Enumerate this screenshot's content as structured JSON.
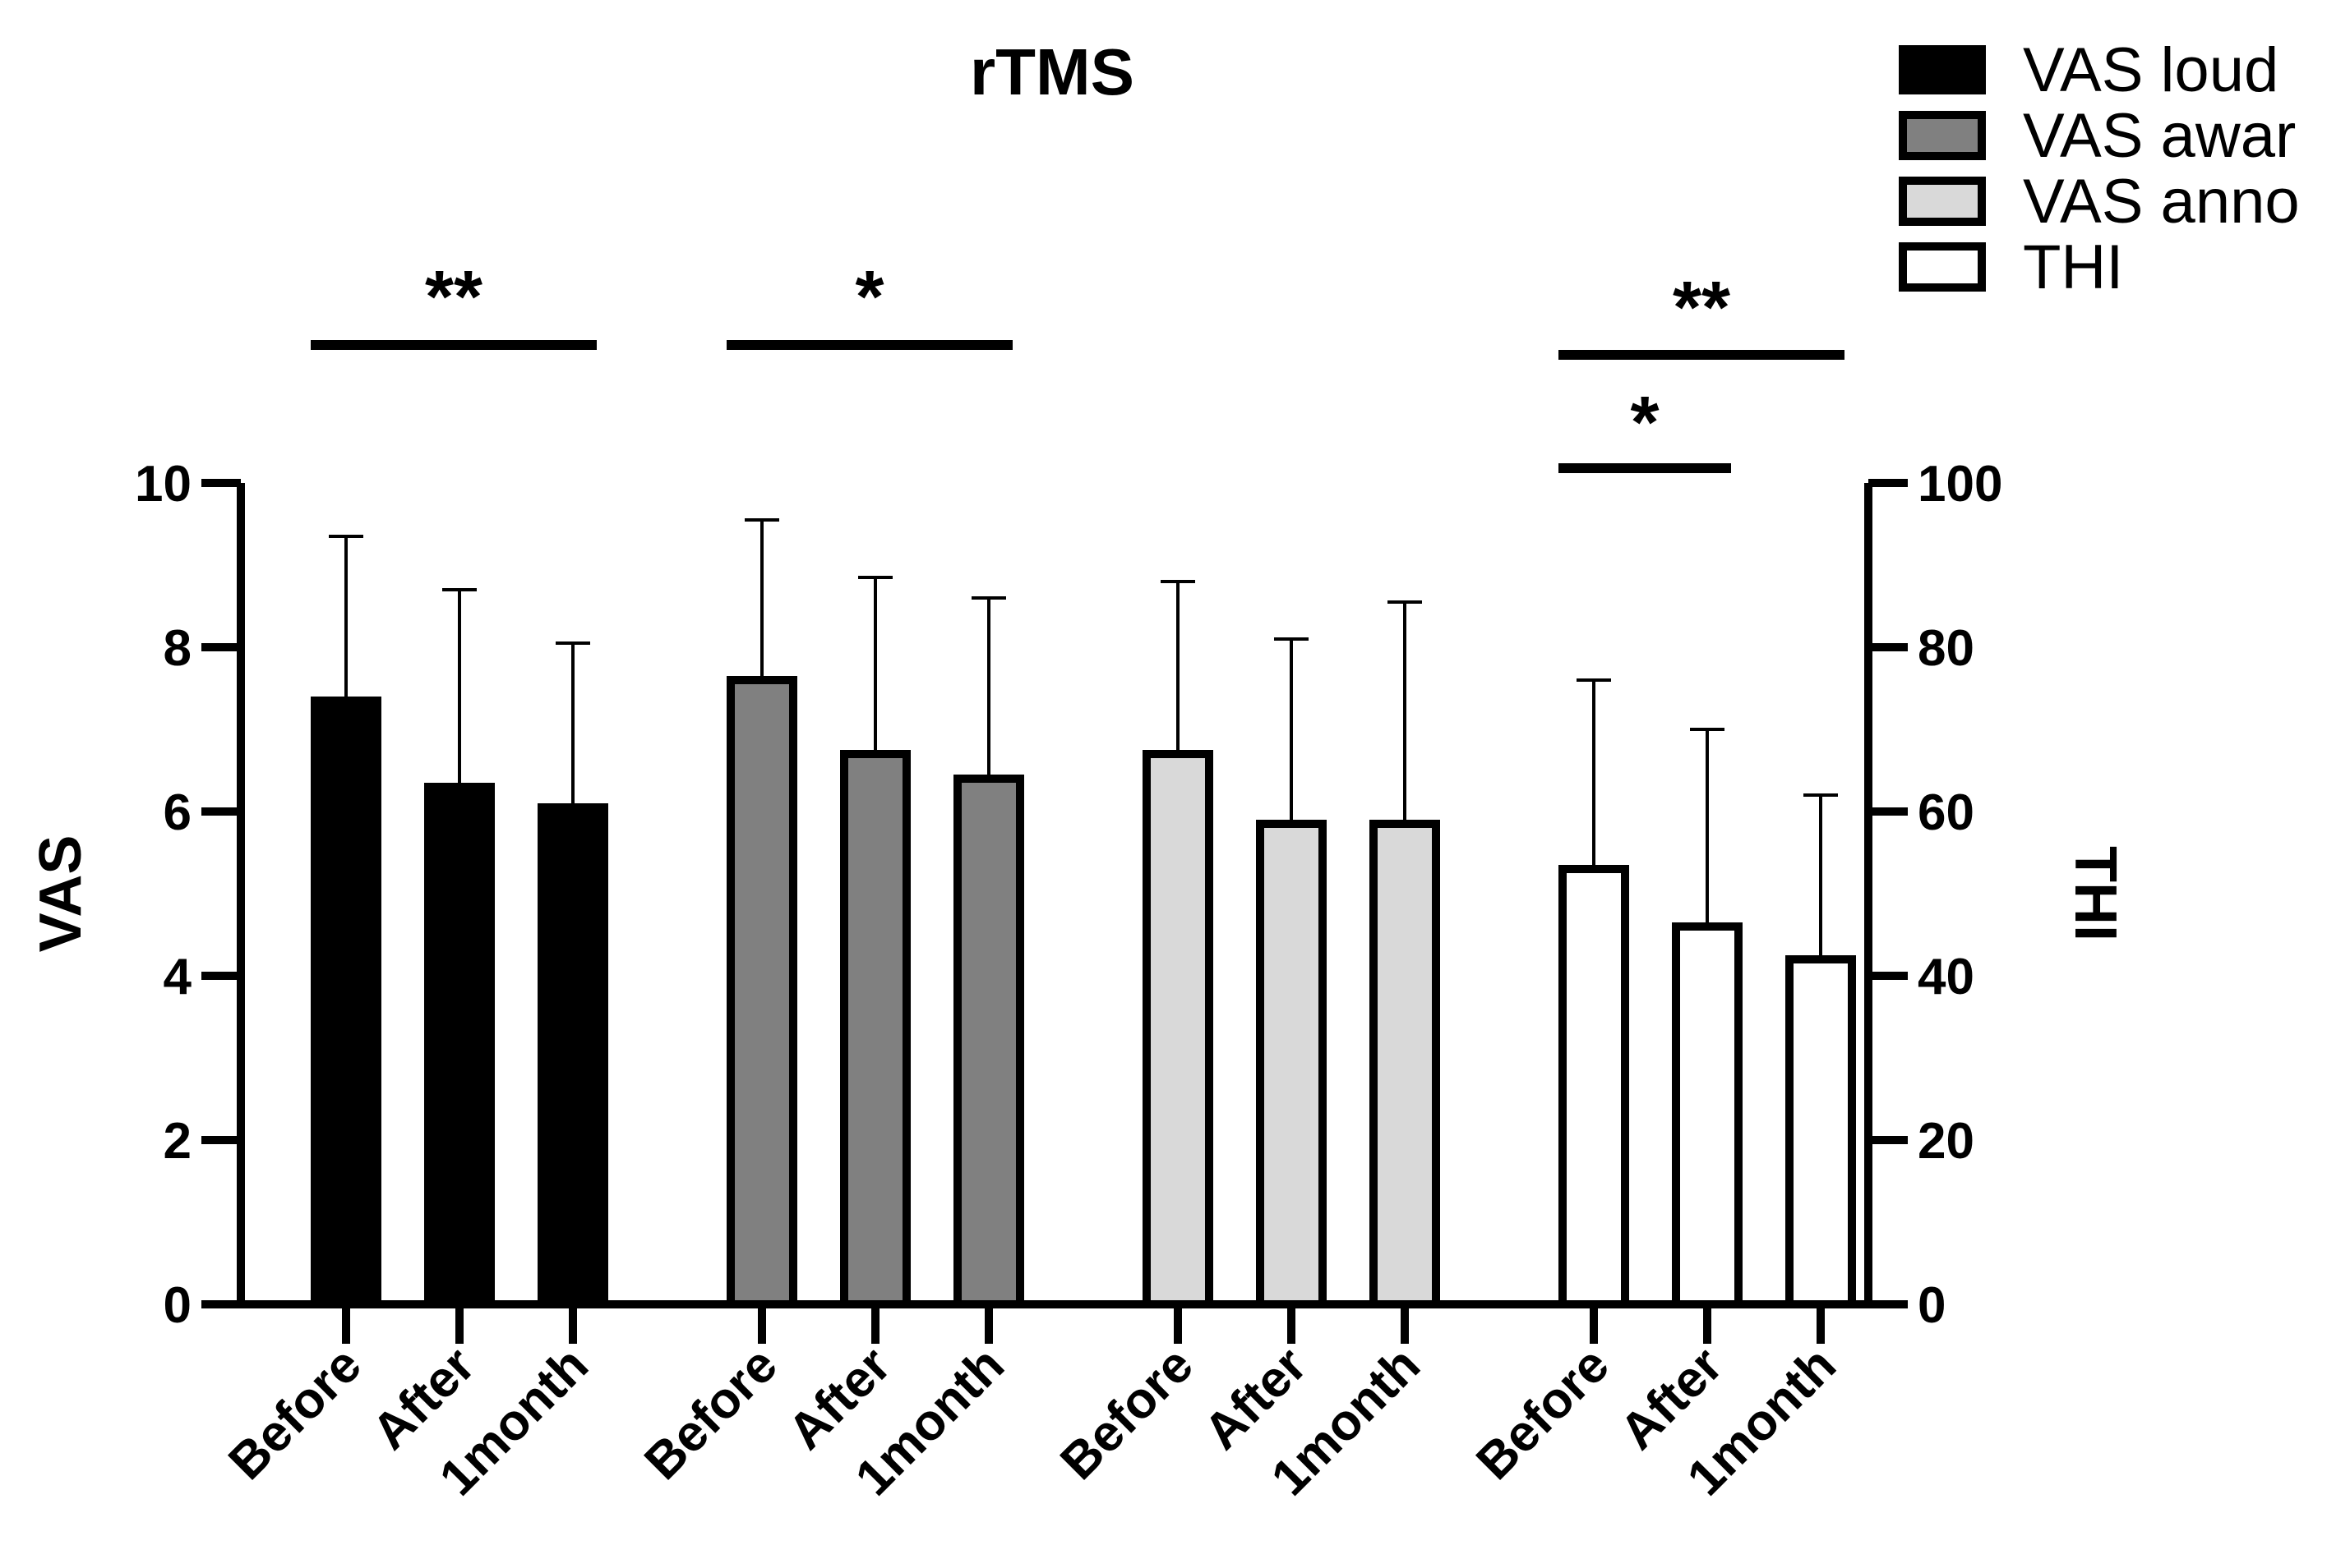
{
  "chart_data": {
    "type": "bar",
    "title": "rTMS",
    "ylabel_left": "VAS",
    "ylabel_right": "THI",
    "ylim_left": [
      0,
      10
    ],
    "ylim_right": [
      0,
      100
    ],
    "yticks_left": [
      "0",
      "2",
      "4",
      "6",
      "8",
      "10"
    ],
    "yticks_right": [
      "0",
      "20",
      "40",
      "60",
      "80",
      "100"
    ],
    "categories": [
      "Before",
      "After",
      "1month"
    ],
    "series": [
      {
        "name": "VAS loud",
        "axis": "left",
        "fill": "#000000",
        "values": [
          7.35,
          6.3,
          6.05
        ],
        "errors": [
          2.0,
          2.4,
          2.0
        ]
      },
      {
        "name": "VAS awar",
        "axis": "left",
        "fill": "#808080",
        "values": [
          7.6,
          6.7,
          6.4
        ],
        "errors": [
          1.95,
          2.15,
          2.2
        ]
      },
      {
        "name": "VAS anno",
        "axis": "left",
        "fill": "#d9d9d9",
        "values": [
          6.7,
          5.85,
          5.85
        ],
        "errors": [
          2.1,
          2.25,
          2.7
        ]
      },
      {
        "name": "THI",
        "axis": "right",
        "fill": "#ffffff",
        "values": [
          53,
          46,
          42
        ],
        "errors": [
          23,
          24,
          20
        ]
      }
    ],
    "significance": [
      {
        "series": 0,
        "from": 0,
        "to": 2,
        "label": "**",
        "level": 0
      },
      {
        "series": 1,
        "from": 0,
        "to": 2,
        "label": "*",
        "level": 0
      },
      {
        "series": 3,
        "from": 0,
        "to": 2,
        "label": "**",
        "level": 1
      },
      {
        "series": 3,
        "from": 0,
        "to": 1,
        "label": "*",
        "level": 0
      }
    ],
    "legend_position": "top-right"
  }
}
